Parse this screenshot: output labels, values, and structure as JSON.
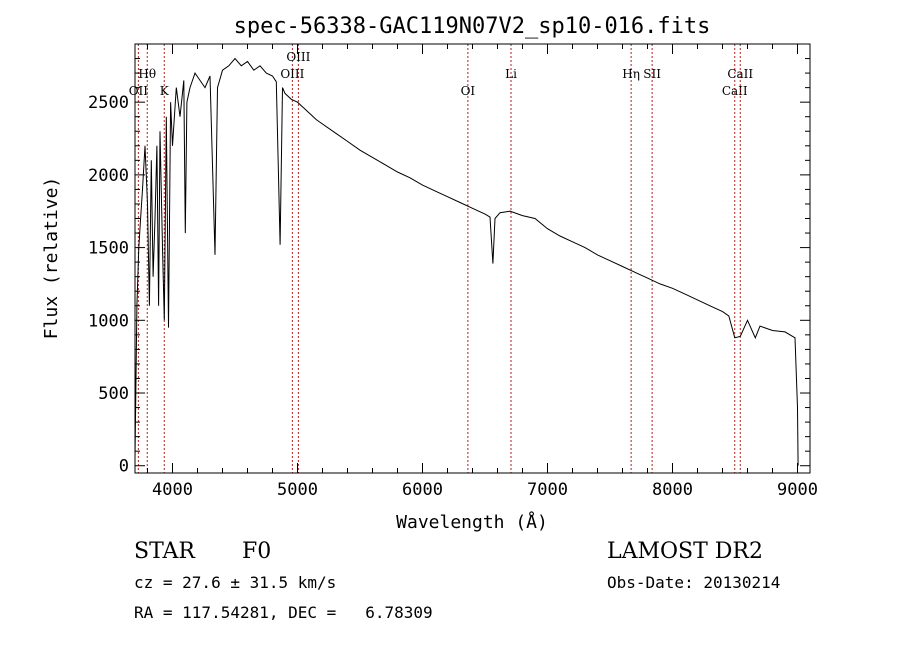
{
  "chart_data": {
    "type": "line",
    "title": "spec-56338-GAC119N07V2_sp10-016.fits",
    "xlabel": "Wavelength (Å)",
    "ylabel": "Flux (relative)",
    "xlim": [
      3700,
      9100
    ],
    "ylim": [
      -50,
      2900
    ],
    "xticks": [
      4000,
      5000,
      6000,
      7000,
      8000,
      9000
    ],
    "yticks": [
      0,
      500,
      1000,
      1500,
      2000,
      2500
    ],
    "grid": false,
    "line_color": "#000000",
    "marker_color": "#b22222",
    "series": [
      {
        "x": [
          3700,
          3715,
          3730,
          3745,
          3760,
          3780,
          3800,
          3815,
          3830,
          3845,
          3860,
          3875,
          3889,
          3900,
          3920,
          3934,
          3950,
          3968,
          3985,
          4000,
          4030,
          4060,
          4090,
          4102,
          4115,
          4140,
          4180,
          4220,
          4260,
          4300,
          4340,
          4360,
          4400,
          4450,
          4500,
          4550,
          4600,
          4650,
          4700,
          4750,
          4800,
          4830,
          4861,
          4880,
          4900,
          4950,
          5000,
          5050,
          5100,
          5150,
          5200,
          5300,
          5400,
          5500,
          5600,
          5700,
          5800,
          5900,
          6000,
          6100,
          6200,
          6300,
          6400,
          6500,
          6540,
          6563,
          6580,
          6620,
          6700,
          6800,
          6900,
          7000,
          7100,
          7200,
          7300,
          7400,
          7500,
          7600,
          7700,
          7800,
          7900,
          8000,
          8100,
          8200,
          8300,
          8400,
          8450,
          8498,
          8542,
          8600,
          8662,
          8700,
          8800,
          8900,
          8980,
          9000,
          9005
        ],
        "y": [
          50,
          1100,
          1500,
          1700,
          1900,
          2200,
          1800,
          1100,
          2100,
          1300,
          1700,
          2200,
          1100,
          2300,
          1500,
          1000,
          2400,
          950,
          2500,
          2200,
          2600,
          2400,
          2650,
          1600,
          2500,
          2600,
          2700,
          2650,
          2600,
          2680,
          1450,
          2600,
          2720,
          2750,
          2800,
          2750,
          2780,
          2720,
          2750,
          2700,
          2680,
          2640,
          1520,
          2600,
          2560,
          2520,
          2500,
          2460,
          2420,
          2380,
          2350,
          2290,
          2230,
          2170,
          2120,
          2070,
          2020,
          1980,
          1930,
          1890,
          1850,
          1810,
          1770,
          1730,
          1710,
          1390,
          1700,
          1740,
          1750,
          1720,
          1700,
          1630,
          1580,
          1540,
          1500,
          1450,
          1410,
          1370,
          1330,
          1290,
          1250,
          1220,
          1180,
          1140,
          1100,
          1060,
          1030,
          880,
          890,
          1000,
          880,
          960,
          930,
          920,
          880,
          400,
          0
        ]
      }
    ],
    "lines": [
      {
        "x": 3727,
        "label": "OII",
        "row": "low"
      },
      {
        "x": 3798,
        "label": "Hθ",
        "row": "high"
      },
      {
        "x": 3934,
        "label": "K",
        "row": "low"
      },
      {
        "x": 4959,
        "label": "OIII",
        "row": "mid"
      },
      {
        "x": 5007,
        "label": "OIII",
        "row": "top"
      },
      {
        "x": 6363,
        "label": "OI",
        "row": "low"
      },
      {
        "x": 6708,
        "label": "Li",
        "row": "mid"
      },
      {
        "x": 7669,
        "label": "Hη",
        "row": "high"
      },
      {
        "x": 7837,
        "label": "SII",
        "row": "high"
      },
      {
        "x": 8498,
        "label": "CaII",
        "row": "low"
      },
      {
        "x": 8542,
        "label": "CaII",
        "row": "mid"
      }
    ]
  },
  "info": {
    "object_class": "STAR",
    "subclass": "F0",
    "cz": "cz = 27.6 ± 31.5 km/s",
    "coords": "RA = 117.54281, DEC =   6.78309",
    "survey": "LAMOST DR2",
    "obs_date": "Obs-Date: 20130214"
  }
}
